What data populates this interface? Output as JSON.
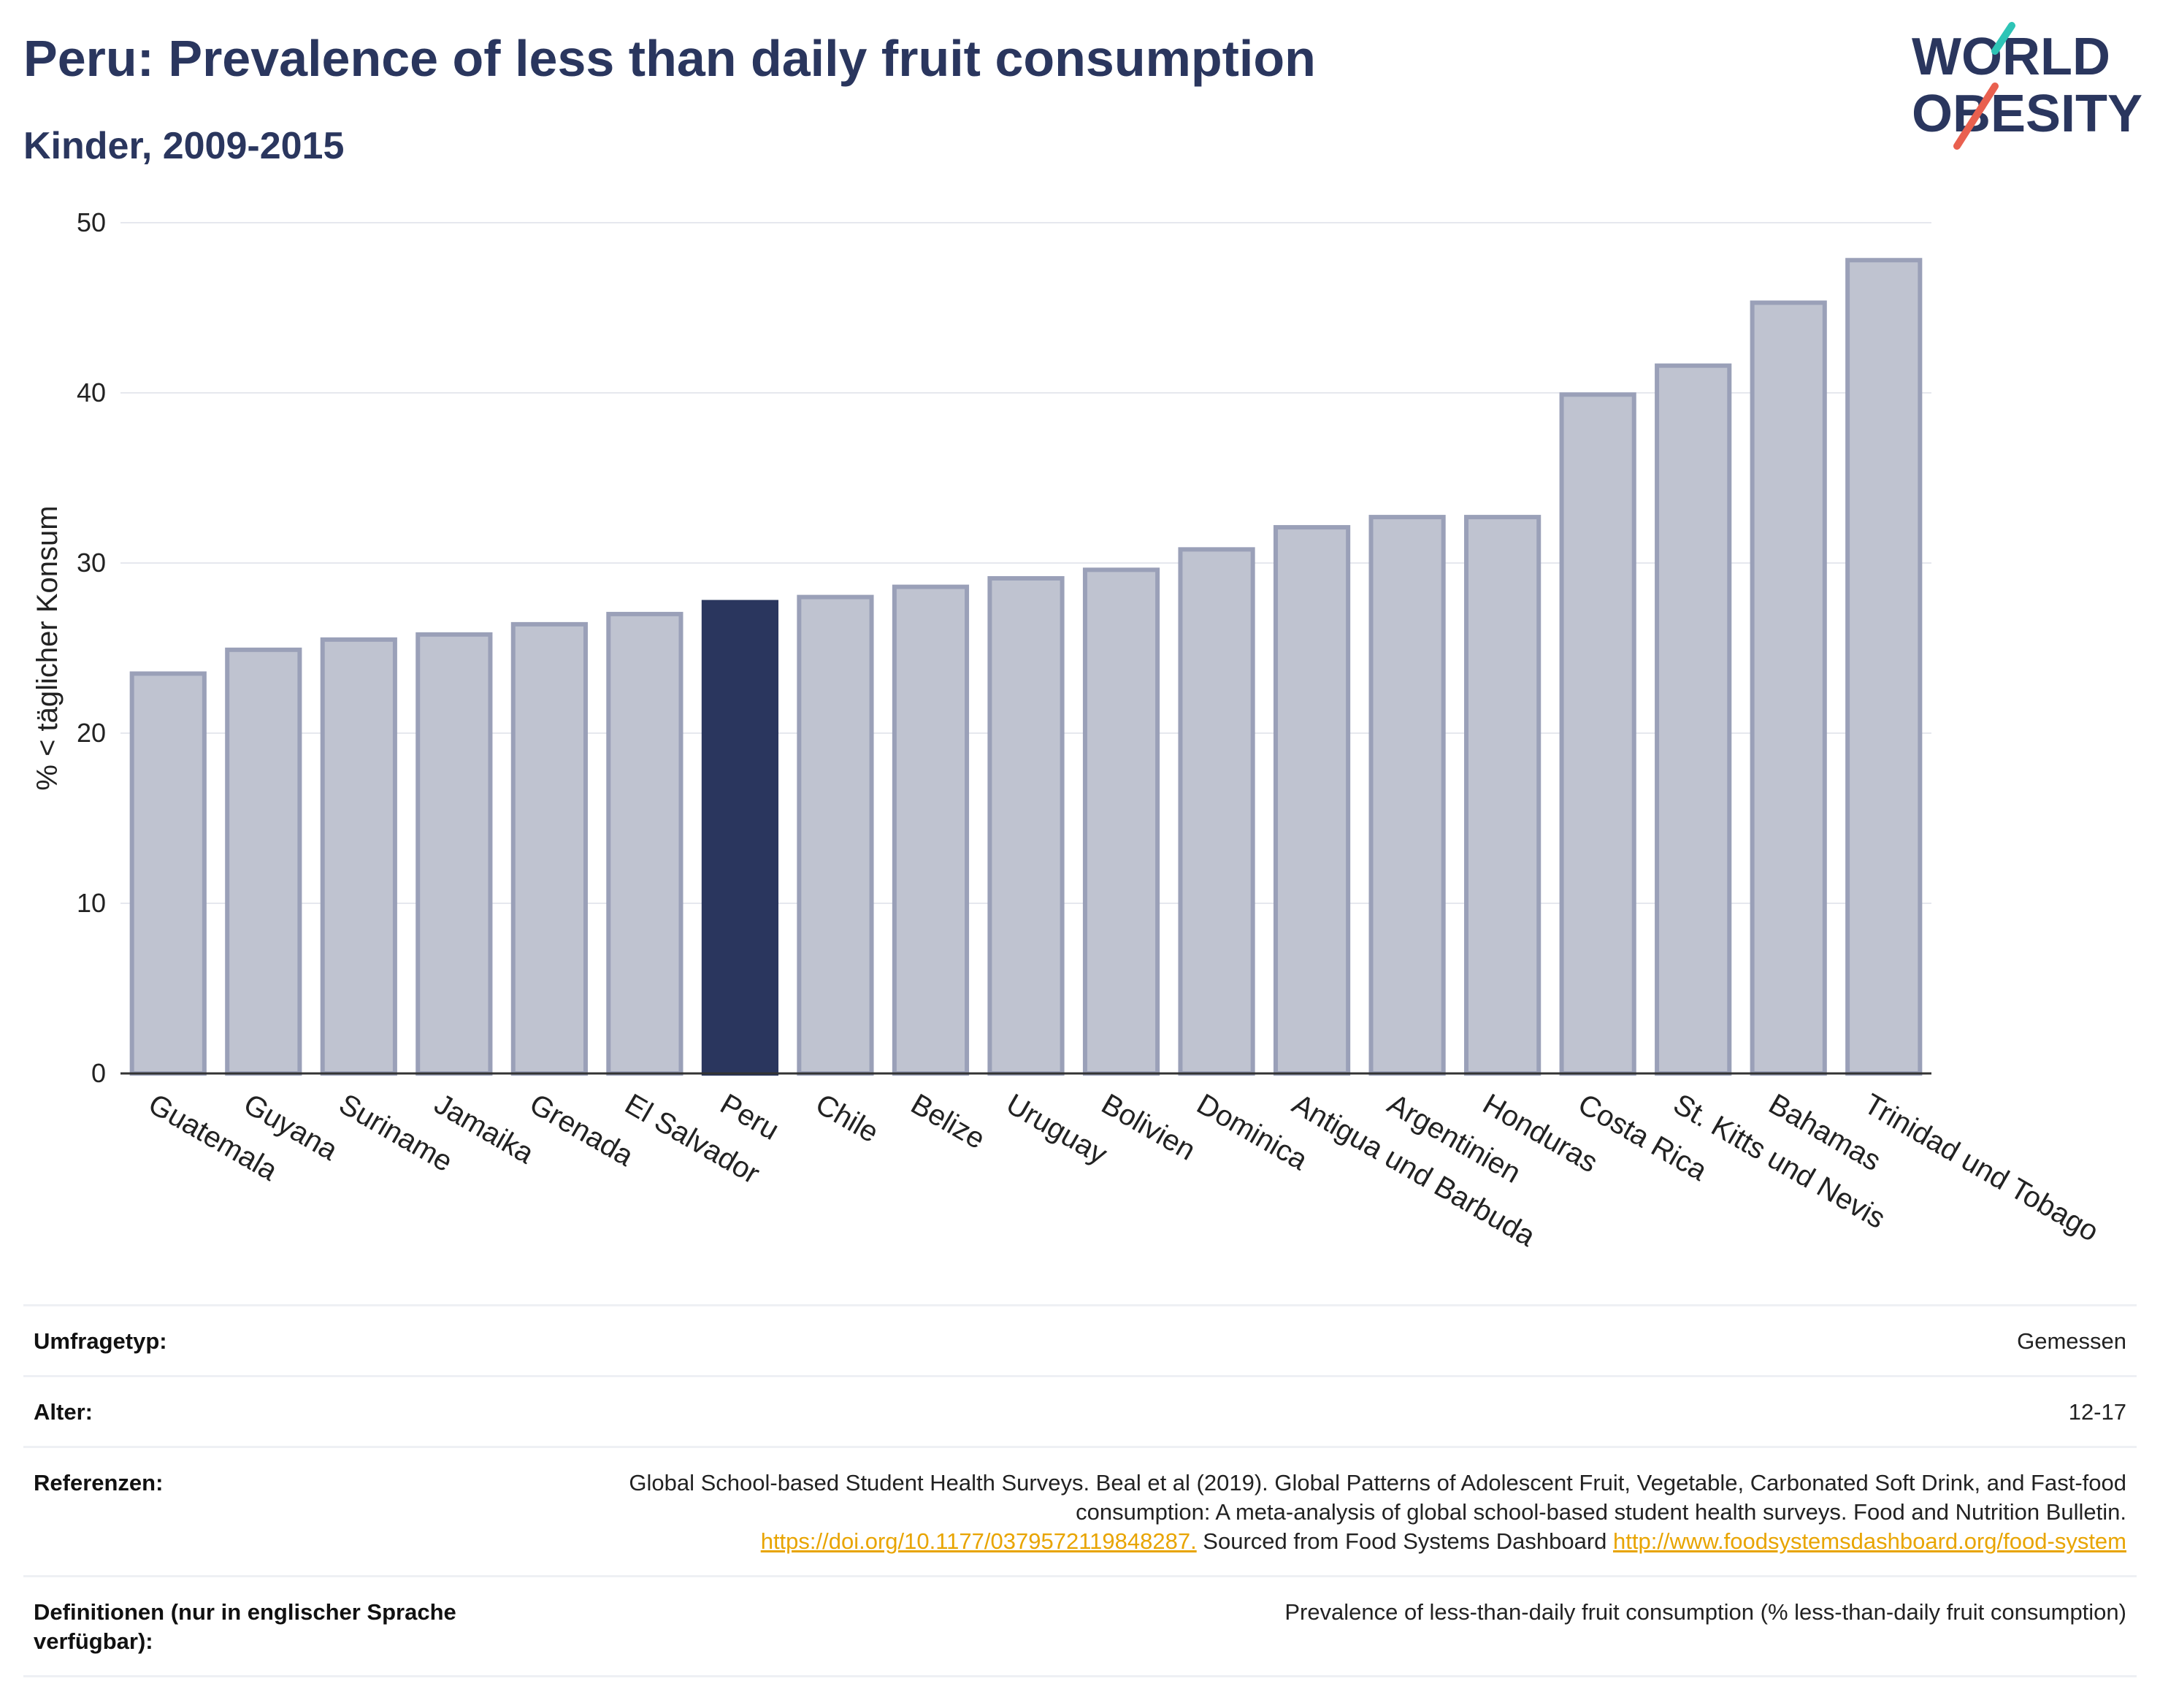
{
  "header": {
    "title": "Peru: Prevalence of less than daily fruit consumption",
    "subtitle": "Kinder, 2009-2015"
  },
  "logo": {
    "line1": "WORLD",
    "line2": "OBESITY",
    "slash_colors": [
      "#2ec4b6",
      "#e9604f"
    ]
  },
  "chart_data": {
    "type": "bar",
    "ylabel": "% < täglicher Konsum",
    "xlabel": "",
    "ylim": [
      0,
      50
    ],
    "yticks": [
      0,
      10,
      20,
      30,
      40,
      50
    ],
    "grid": true,
    "highlight": "Peru",
    "colors": {
      "bar": "#bfc3d0",
      "bar_edge": "#9aa0b8",
      "highlight": "#2a365e"
    },
    "categories": [
      "Guatemala",
      "Guyana",
      "Suriname",
      "Jamaika",
      "Grenada",
      "El Salvador",
      "Peru",
      "Chile",
      "Belize",
      "Uruguay",
      "Bolivien",
      "Dominica",
      "Antigua und Barbuda",
      "Argentinien",
      "Honduras",
      "Costa Rica",
      "St. Kitts und Nevis",
      "Bahamas",
      "Trinidad und Tobago"
    ],
    "values": [
      23.5,
      24.9,
      25.5,
      25.8,
      26.4,
      27.0,
      27.7,
      28.0,
      28.6,
      29.1,
      29.6,
      30.8,
      32.1,
      32.7,
      32.7,
      39.9,
      41.6,
      45.3,
      47.8
    ]
  },
  "info": {
    "survey_type": {
      "label": "Umfragetyp:",
      "value": "Gemessen"
    },
    "age": {
      "label": "Alter:",
      "value": "12-17"
    },
    "references": {
      "label": "Referenzen:",
      "text1": "Global School-based Student Health Surveys. Beal et al (2019). Global Patterns of Adolescent Fruit, Vegetable, Carbonated Soft Drink, and Fast-food consumption: A meta-analysis of global school-based student health surveys. Food and Nutrition Bulletin.",
      "link1": "https://doi.org/10.1177/0379572119848287.",
      "text2": " Sourced from Food Systems Dashboard ",
      "link2": "http://www.foodsystemsdashboard.org/food-system"
    },
    "definitions": {
      "label": "Definitionen (nur in englischer Sprache verfügbar):",
      "value": "Prevalence of less-than-daily fruit consumption (% less-than-daily fruit consumption)"
    }
  }
}
